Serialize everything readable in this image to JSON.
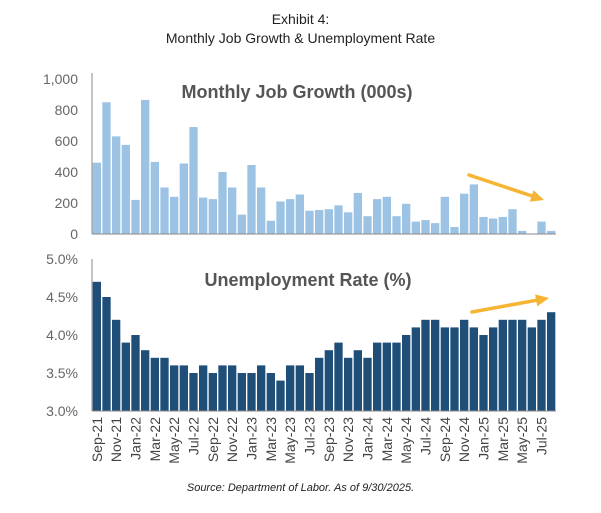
{
  "exhibit": {
    "title_line1": "Exhibit 4:",
    "title_line2": "Monthly Job Growth & Unemployment Rate",
    "source": "Source: Department of Labor. As of 9/30/2025."
  },
  "colors": {
    "jobs_bar": "#9cc3e4",
    "unemp_bar": "#1f4e79",
    "arrow": "#f5b431",
    "axis": "#888888"
  },
  "chart_data": [
    {
      "type": "bar",
      "title": "Monthly Job Growth (000s)",
      "xlabel": "",
      "ylabel": "",
      "ylim": [
        0,
        1000
      ],
      "yticks": [
        "0",
        "200",
        "400",
        "600",
        "800",
        "1,000"
      ],
      "categories": [
        "Sep-21",
        "Oct-21",
        "Nov-21",
        "Dec-21",
        "Jan-22",
        "Feb-22",
        "Mar-22",
        "Apr-22",
        "May-22",
        "Jun-22",
        "Jul-22",
        "Aug-22",
        "Sep-22",
        "Oct-22",
        "Nov-22",
        "Dec-22",
        "Jan-23",
        "Feb-23",
        "Mar-23",
        "Apr-23",
        "May-23",
        "Jun-23",
        "Jul-23",
        "Aug-23",
        "Sep-23",
        "Oct-23",
        "Nov-23",
        "Dec-23",
        "Jan-24",
        "Feb-24",
        "Mar-24",
        "Apr-24",
        "May-24",
        "Jun-24",
        "Jul-24",
        "Aug-24",
        "Sep-24",
        "Oct-24",
        "Nov-24",
        "Dec-24",
        "Jan-25",
        "Feb-25",
        "Mar-25",
        "Apr-25",
        "May-25",
        "Jun-25",
        "Jul-25",
        "Aug-25"
      ],
      "values": [
        460,
        850,
        630,
        575,
        220,
        865,
        465,
        300,
        240,
        455,
        690,
        235,
        225,
        400,
        300,
        125,
        445,
        300,
        85,
        210,
        225,
        255,
        150,
        155,
        160,
        185,
        140,
        265,
        115,
        225,
        240,
        115,
        195,
        80,
        90,
        70,
        240,
        45,
        260,
        320,
        110,
        100,
        110,
        160,
        20,
        0,
        80,
        20
      ],
      "annotation": "downward trend arrow"
    },
    {
      "type": "bar",
      "title": "Unemployment Rate (%)",
      "xlabel": "",
      "ylabel": "",
      "ylim": [
        3.0,
        5.0
      ],
      "yticks": [
        "3.0%",
        "3.5%",
        "4.0%",
        "4.5%",
        "5.0%"
      ],
      "categories": [
        "Sep-21",
        "Oct-21",
        "Nov-21",
        "Dec-21",
        "Jan-22",
        "Feb-22",
        "Mar-22",
        "Apr-22",
        "May-22",
        "Jun-22",
        "Jul-22",
        "Aug-22",
        "Sep-22",
        "Oct-22",
        "Nov-22",
        "Dec-22",
        "Jan-23",
        "Feb-23",
        "Mar-23",
        "Apr-23",
        "May-23",
        "Jun-23",
        "Jul-23",
        "Aug-23",
        "Sep-23",
        "Oct-23",
        "Nov-23",
        "Dec-23",
        "Jan-24",
        "Feb-24",
        "Mar-24",
        "Apr-24",
        "May-24",
        "Jun-24",
        "Jul-24",
        "Aug-24",
        "Sep-24",
        "Oct-24",
        "Nov-24",
        "Dec-24",
        "Jan-25",
        "Feb-25",
        "Mar-25",
        "Apr-25",
        "May-25",
        "Jun-25",
        "Jul-25",
        "Aug-25"
      ],
      "values": [
        4.7,
        4.5,
        4.2,
        3.9,
        4.0,
        3.8,
        3.7,
        3.7,
        3.6,
        3.6,
        3.5,
        3.6,
        3.5,
        3.6,
        3.6,
        3.5,
        3.5,
        3.6,
        3.5,
        3.4,
        3.6,
        3.6,
        3.5,
        3.7,
        3.8,
        3.9,
        3.7,
        3.8,
        3.7,
        3.9,
        3.9,
        3.9,
        4.0,
        4.1,
        4.2,
        4.2,
        4.1,
        4.1,
        4.2,
        4.1,
        4.0,
        4.1,
        4.2,
        4.2,
        4.2,
        4.1,
        4.2,
        4.3
      ],
      "x_tick_labels": [
        "Sep-21",
        "Nov-21",
        "Jan-22",
        "Mar-22",
        "May-22",
        "Jul-22",
        "Sep-22",
        "Nov-22",
        "Jan-23",
        "Mar-23",
        "May-23",
        "Jul-23",
        "Sep-23",
        "Nov-23",
        "Jan-24",
        "Mar-24",
        "May-24",
        "Jul-24",
        "Sep-24",
        "Nov-24",
        "Jan-25",
        "Mar-25",
        "May-25",
        "Jul-25"
      ],
      "annotation": "upward trend arrow"
    }
  ]
}
